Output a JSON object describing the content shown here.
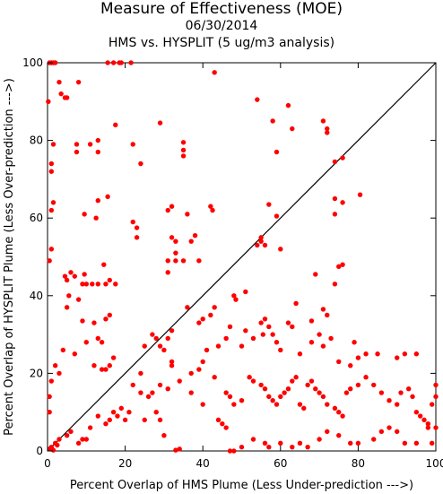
{
  "chart_data": {
    "type": "scatter",
    "title": "Measure of Effectiveness (MOE)",
    "subtitle": "06/30/2014",
    "subtitle2": "HMS vs. HYSPLIT  (5 ug/m3 analysis)",
    "xlabel": "Percent Overlap of HMS Plume (Less Under-prediction --->)",
    "ylabel": "Percent Overlap of HYSPLIT Plume (Less Over-prediction --->)",
    "xlim": [
      0,
      100
    ],
    "ylim": [
      0,
      100
    ],
    "xticks": [
      0,
      20,
      40,
      60,
      80,
      100
    ],
    "yticks": [
      0,
      20,
      40,
      60,
      80,
      100
    ],
    "reference_line": "y = x",
    "grid": false,
    "marker_color": "#ff0000",
    "points": [
      [
        0.5,
        100
      ],
      [
        1,
        100
      ],
      [
        1.5,
        100
      ],
      [
        2,
        100
      ],
      [
        3,
        95
      ],
      [
        3.5,
        92
      ],
      [
        4.5,
        91
      ],
      [
        5,
        91
      ],
      [
        8,
        95
      ],
      [
        0.2,
        90
      ],
      [
        15.5,
        100
      ],
      [
        17,
        100
      ],
      [
        18.5,
        100
      ],
      [
        19,
        100
      ],
      [
        21.5,
        100
      ],
      [
        43,
        97.5
      ],
      [
        1.5,
        79
      ],
      [
        7.5,
        79
      ],
      [
        7.5,
        77
      ],
      [
        11,
        79
      ],
      [
        13,
        80
      ],
      [
        13,
        77
      ],
      [
        17.5,
        84
      ],
      [
        22,
        79
      ],
      [
        24,
        74
      ],
      [
        29,
        84.5
      ],
      [
        35,
        79.5
      ],
      [
        35,
        77.5
      ],
      [
        35,
        76
      ],
      [
        1,
        74
      ],
      [
        1,
        72
      ],
      [
        1.5,
        64
      ],
      [
        1,
        62
      ],
      [
        1,
        52
      ],
      [
        0.5,
        49
      ],
      [
        4.5,
        45
      ],
      [
        5,
        44
      ],
      [
        6,
        46
      ],
      [
        5.5,
        40
      ],
      [
        7,
        45
      ],
      [
        9.5,
        45.5
      ],
      [
        9,
        43
      ],
      [
        10,
        43
      ],
      [
        11.5,
        43
      ],
      [
        13,
        43
      ],
      [
        15,
        43
      ],
      [
        16,
        44
      ],
      [
        17.5,
        43
      ],
      [
        14.5,
        48
      ],
      [
        13,
        64.5
      ],
      [
        15.5,
        65.5
      ],
      [
        12.5,
        60
      ],
      [
        9.5,
        61
      ],
      [
        22,
        59
      ],
      [
        23,
        57.5
      ],
      [
        23,
        55
      ],
      [
        31,
        62
      ],
      [
        32,
        63
      ],
      [
        36,
        61
      ],
      [
        31,
        49
      ],
      [
        32,
        55
      ],
      [
        33,
        54
      ],
      [
        33,
        51
      ],
      [
        33,
        49
      ],
      [
        31,
        46
      ],
      [
        35,
        49
      ],
      [
        38,
        55.5
      ],
      [
        37,
        54
      ],
      [
        39,
        49
      ],
      [
        42,
        63
      ],
      [
        42.5,
        62
      ],
      [
        5,
        37
      ],
      [
        8,
        39
      ],
      [
        9,
        33.5
      ],
      [
        12,
        33
      ],
      [
        13,
        29
      ],
      [
        14,
        28
      ],
      [
        15,
        34
      ],
      [
        16,
        35
      ],
      [
        10,
        28
      ],
      [
        14,
        21
      ],
      [
        15,
        21
      ],
      [
        16,
        22
      ],
      [
        17,
        24
      ],
      [
        24,
        20
      ],
      [
        25,
        27
      ],
      [
        27,
        30
      ],
      [
        28,
        29
      ],
      [
        29,
        27
      ],
      [
        30,
        26
      ],
      [
        31,
        29
      ],
      [
        32,
        31
      ],
      [
        32,
        23
      ],
      [
        32,
        22
      ],
      [
        36,
        37
      ],
      [
        39,
        33
      ],
      [
        40,
        34
      ],
      [
        42,
        35
      ],
      [
        43,
        37
      ],
      [
        44,
        27
      ],
      [
        46,
        29
      ],
      [
        47,
        32
      ],
      [
        48,
        40
      ],
      [
        50,
        27
      ],
      [
        51,
        31
      ],
      [
        53,
        29
      ],
      [
        55,
        33
      ],
      [
        56,
        34
      ],
      [
        57,
        32
      ],
      [
        58,
        30
      ],
      [
        59,
        28
      ],
      [
        60,
        26
      ],
      [
        62,
        33
      ],
      [
        63,
        32
      ],
      [
        65,
        25
      ],
      [
        68,
        28
      ],
      [
        70,
        30
      ],
      [
        71,
        27
      ],
      [
        73,
        29
      ],
      [
        75,
        23
      ],
      [
        78,
        22
      ],
      [
        79,
        28
      ],
      [
        80,
        24
      ],
      [
        82,
        25
      ],
      [
        85,
        25
      ],
      [
        90,
        24
      ],
      [
        92,
        25
      ],
      [
        95,
        25
      ],
      [
        100,
        17
      ],
      [
        100,
        14
      ],
      [
        99,
        12
      ],
      [
        100,
        6
      ],
      [
        98,
        6
      ],
      [
        99,
        2
      ],
      [
        95,
        2
      ],
      [
        92,
        2
      ],
      [
        90,
        5
      ],
      [
        88,
        6
      ],
      [
        86,
        5
      ],
      [
        84,
        3
      ],
      [
        80,
        2
      ],
      [
        78,
        2
      ],
      [
        75,
        4
      ],
      [
        72,
        5
      ],
      [
        70,
        3
      ],
      [
        67,
        1
      ],
      [
        65,
        2
      ],
      [
        63,
        1
      ],
      [
        60,
        2
      ],
      [
        57,
        1
      ],
      [
        56,
        2
      ],
      [
        53,
        3
      ],
      [
        50,
        1
      ],
      [
        48,
        0
      ],
      [
        47,
        0
      ],
      [
        46,
        6
      ],
      [
        45,
        7
      ],
      [
        44,
        8
      ],
      [
        40,
        12
      ],
      [
        37,
        15
      ],
      [
        34,
        0.5
      ],
      [
        33,
        0.2
      ],
      [
        30,
        4
      ],
      [
        29,
        8
      ],
      [
        28,
        10
      ],
      [
        26,
        14
      ],
      [
        24,
        15
      ],
      [
        22,
        17
      ],
      [
        21,
        10
      ],
      [
        20,
        8
      ],
      [
        19,
        11
      ],
      [
        18,
        9
      ],
      [
        17,
        10
      ],
      [
        16,
        8
      ],
      [
        15,
        7
      ],
      [
        13,
        9
      ],
      [
        11,
        6
      ],
      [
        10,
        3
      ],
      [
        9,
        3
      ],
      [
        8,
        2
      ],
      [
        6,
        5
      ],
      [
        5,
        4
      ],
      [
        3,
        3
      ],
      [
        2,
        2
      ],
      [
        1,
        1
      ],
      [
        0.5,
        0.5
      ],
      [
        1.5,
        0.2
      ],
      [
        2.5,
        1.5
      ],
      [
        3,
        20
      ],
      [
        1,
        18
      ],
      [
        0.5,
        14
      ],
      [
        0.5,
        10
      ],
      [
        2,
        22
      ],
      [
        4,
        26
      ],
      [
        7,
        25
      ],
      [
        12,
        22
      ],
      [
        25,
        8
      ],
      [
        27,
        15
      ],
      [
        29,
        17
      ],
      [
        31,
        16
      ],
      [
        34,
        18
      ],
      [
        37,
        20
      ],
      [
        39,
        21
      ],
      [
        40,
        23
      ],
      [
        41,
        26
      ],
      [
        43,
        19
      ],
      [
        46,
        15
      ],
      [
        47,
        14
      ],
      [
        48,
        12
      ],
      [
        50,
        13
      ],
      [
        52,
        19
      ],
      [
        53,
        18
      ],
      [
        55,
        17
      ],
      [
        56,
        16
      ],
      [
        57,
        14
      ],
      [
        58,
        13
      ],
      [
        59,
        12
      ],
      [
        60,
        14
      ],
      [
        61,
        15
      ],
      [
        62,
        16
      ],
      [
        63,
        18
      ],
      [
        64,
        19
      ],
      [
        65,
        12
      ],
      [
        66,
        11
      ],
      [
        67,
        17
      ],
      [
        68,
        18
      ],
      [
        69,
        16
      ],
      [
        70,
        15
      ],
      [
        71,
        14
      ],
      [
        72,
        12
      ],
      [
        74,
        11
      ],
      [
        75,
        10
      ],
      [
        76,
        9
      ],
      [
        77,
        15
      ],
      [
        78,
        16
      ],
      [
        80,
        17
      ],
      [
        82,
        19
      ],
      [
        84,
        17
      ],
      [
        86,
        15
      ],
      [
        88,
        13
      ],
      [
        90,
        12
      ],
      [
        91,
        15
      ],
      [
        93,
        16
      ],
      [
        94,
        14
      ],
      [
        95,
        10
      ],
      [
        96,
        9
      ],
      [
        97,
        8
      ],
      [
        98,
        7
      ],
      [
        54,
        90.5
      ],
      [
        58,
        85
      ],
      [
        59,
        77
      ],
      [
        62,
        89
      ],
      [
        63,
        83
      ],
      [
        71,
        85
      ],
      [
        72,
        83
      ],
      [
        72,
        82
      ],
      [
        74,
        74.5
      ],
      [
        76,
        75.5
      ],
      [
        76,
        64
      ],
      [
        74,
        65
      ],
      [
        74,
        61
      ],
      [
        75,
        47.5
      ],
      [
        76,
        48
      ],
      [
        69,
        45.5
      ],
      [
        80.5,
        66
      ],
      [
        57,
        63.5
      ],
      [
        59,
        60.5
      ],
      [
        55,
        55
      ],
      [
        55,
        54
      ],
      [
        56,
        53
      ],
      [
        60,
        52
      ],
      [
        54,
        53
      ],
      [
        51,
        41
      ],
      [
        48.5,
        39
      ],
      [
        55.5,
        30
      ],
      [
        64,
        38
      ],
      [
        68,
        33.5
      ],
      [
        71,
        36.5
      ],
      [
        72,
        35
      ],
      [
        74,
        43
      ]
    ]
  }
}
